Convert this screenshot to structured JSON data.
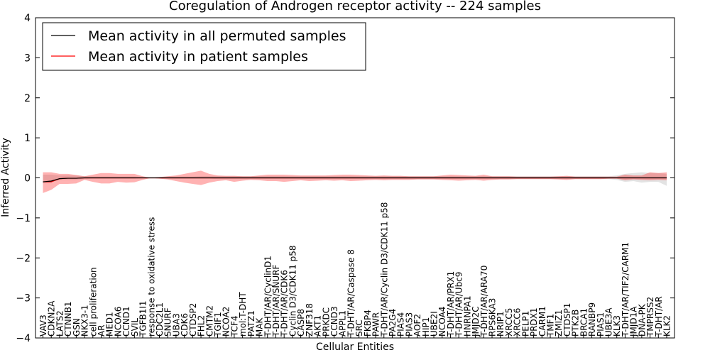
{
  "chart_data": {
    "type": "line",
    "title": "Coregulation of Androgen receptor activity -- 224 samples",
    "xlabel": "Cellular Entities",
    "ylabel": "Inferred Activity",
    "ylim": [
      -4,
      4
    ],
    "yticks": [
      "4",
      "3",
      "2",
      "1",
      "0",
      "−1",
      "−2",
      "−3",
      "−4"
    ],
    "ytick_values": [
      4,
      3,
      2,
      1,
      0,
      -1,
      -2,
      -3,
      -4
    ],
    "legend_placement": "top-left",
    "categories": [
      "VAV3",
      "CDKN2A",
      "LATS2",
      "CTNNB1",
      "GSN",
      "NKX3-1",
      "cell proliferation",
      "AR",
      "MED1",
      "NCOA6",
      "CCND1",
      "SVIL",
      "TGFB1I1",
      "response to oxidative stress",
      "CDC2L1",
      "SNURF",
      "UBA3",
      "CDK6",
      "CTDSP2",
      "FHL2",
      "CMTM2",
      "TGIF1",
      "NCOA2",
      "TCF4",
      "mol:T-DHT",
      "PATZ1",
      "MAK",
      "T-DHT/AR/CyclinD1",
      "T-DHT/AR/SNURF",
      "T-DHT/AR/CDK6",
      "Cyclin D3/CDK11 p58",
      "CASP8",
      "ZNF318",
      "AKT1",
      "PRKDC",
      "CCND3",
      "APPL1",
      "T-DHT/AR/Caspase 8",
      "SRC",
      "FKBP4",
      "PAWR",
      "T-DHT/AR/Cyclin D3/CDK11 p58",
      "PA2G4",
      "PIAS4",
      "PIAS3",
      "AOF2",
      "HIP1",
      "UBE2I",
      "NCOA4",
      "T-DHT/AR/PRX1",
      "T-DHT/AR/Ubc9",
      "HNRNPA1",
      "JMJD2C",
      "T-DHT/AR/ARA70",
      "RPS6KA3",
      "NRIP1",
      "XRCC5",
      "XRCC6",
      "PELP1",
      "PRDX1",
      "CARM1",
      "TMF1",
      "ZMIZ1",
      "CTDSP1",
      "PTK2B",
      "BRCA1",
      "RANBP9",
      "PIAS1",
      "UBE3A",
      "KLK3",
      "T-DHT/AR/TIF2/CARM1",
      "JMJD1A",
      "DNA-PK",
      "TMPRSS2",
      "T-DHT/AR",
      "KLK2"
    ],
    "series": [
      {
        "name": "Mean activity in all permuted samples",
        "color": "#000000",
        "values": [
          -0.1,
          -0.08,
          -0.02,
          -0.01,
          -0.01,
          0,
          0,
          0,
          0,
          0,
          0,
          0,
          0,
          0,
          0,
          0,
          0,
          0,
          0,
          0,
          0,
          0,
          0,
          0,
          0,
          0,
          0,
          0,
          0,
          0,
          0,
          0,
          0,
          0,
          0,
          0,
          0,
          0,
          0,
          0,
          0,
          0,
          0,
          0,
          0,
          0,
          0,
          0,
          0,
          0,
          0,
          0,
          0,
          0,
          0,
          0,
          0,
          0,
          0,
          0,
          0,
          0,
          0,
          0,
          0,
          0,
          0,
          0,
          0,
          0,
          0,
          0,
          0,
          0,
          0,
          0
        ],
        "band_lower": [
          -0.12,
          -0.1,
          -0.05,
          -0.05,
          -0.05,
          -0.03,
          -0.02,
          -0.02,
          -0.02,
          -0.02,
          -0.02,
          -0.02,
          -0.01,
          0,
          -0.01,
          -0.02,
          -0.02,
          -0.02,
          -0.02,
          -0.02,
          -0.02,
          -0.03,
          -0.03,
          -0.03,
          -0.03,
          -0.03,
          -0.03,
          -0.03,
          -0.03,
          -0.03,
          -0.03,
          -0.03,
          -0.03,
          -0.03,
          -0.03,
          -0.03,
          -0.03,
          -0.03,
          -0.03,
          -0.03,
          -0.03,
          -0.03,
          -0.03,
          -0.03,
          -0.03,
          -0.03,
          -0.03,
          -0.03,
          -0.03,
          -0.03,
          -0.03,
          -0.03,
          -0.03,
          -0.03,
          -0.03,
          -0.03,
          -0.03,
          -0.03,
          -0.03,
          -0.03,
          -0.03,
          -0.03,
          -0.03,
          -0.03,
          -0.03,
          -0.03,
          -0.03,
          -0.03,
          -0.03,
          -0.05,
          -0.1,
          -0.08,
          -0.12,
          -0.1,
          -0.1,
          -0.2
        ],
        "band_upper": [
          0.08,
          0.08,
          0.06,
          0.06,
          0.06,
          0.04,
          0.03,
          0.03,
          0.03,
          0.03,
          0.03,
          0.03,
          0.02,
          0,
          0.02,
          0.03,
          0.03,
          0.03,
          0.03,
          0.04,
          0.04,
          0.04,
          0.04,
          0.04,
          0.04,
          0.04,
          0.04,
          0.04,
          0.04,
          0.04,
          0.04,
          0.04,
          0.04,
          0.04,
          0.04,
          0.04,
          0.04,
          0.04,
          0.04,
          0.04,
          0.04,
          0.04,
          0.04,
          0.04,
          0.04,
          0.04,
          0.04,
          0.04,
          0.04,
          0.04,
          0.04,
          0.04,
          0.04,
          0.04,
          0.04,
          0.04,
          0.04,
          0.04,
          0.04,
          0.04,
          0.04,
          0.04,
          0.04,
          0.04,
          0.04,
          0.04,
          0.04,
          0.04,
          0.04,
          0.06,
          0.1,
          0.12,
          0.14,
          0.12,
          0.12,
          0.1
        ]
      },
      {
        "name": "Mean activity in patient samples",
        "color": "#ff0000",
        "values": [
          -0.1,
          -0.1,
          -0.02,
          -0.01,
          -0.01,
          0,
          0,
          0,
          0,
          0,
          0,
          0,
          0,
          0,
          0,
          0,
          0,
          0,
          0,
          0,
          0,
          0,
          0,
          0,
          0,
          0,
          0,
          0,
          0,
          0,
          0,
          0,
          0,
          0,
          0,
          0,
          0,
          0,
          0,
          0,
          0,
          0,
          0,
          0,
          0,
          0,
          0,
          0,
          0,
          0,
          0,
          0,
          0,
          0,
          0,
          0,
          0,
          0,
          0,
          0,
          0,
          0,
          0,
          0,
          0,
          0,
          0,
          0,
          0,
          0,
          0,
          0,
          0,
          0,
          0,
          0
        ],
        "band_lower": [
          -0.38,
          -0.3,
          -0.15,
          -0.15,
          -0.14,
          -0.05,
          -0.1,
          -0.14,
          -0.14,
          -0.1,
          -0.12,
          -0.11,
          -0.05,
          0,
          -0.02,
          -0.04,
          -0.08,
          -0.12,
          -0.15,
          -0.18,
          -0.12,
          -0.08,
          -0.06,
          -0.1,
          -0.07,
          -0.05,
          -0.06,
          -0.08,
          -0.08,
          -0.1,
          -0.08,
          -0.06,
          -0.08,
          -0.07,
          -0.06,
          -0.07,
          -0.06,
          -0.08,
          -0.07,
          -0.06,
          -0.05,
          -0.06,
          -0.05,
          -0.05,
          -0.05,
          -0.04,
          -0.04,
          -0.04,
          -0.05,
          -0.06,
          -0.07,
          -0.06,
          -0.05,
          -0.07,
          -0.05,
          -0.04,
          -0.04,
          -0.03,
          -0.03,
          -0.03,
          -0.03,
          -0.03,
          -0.04,
          -0.05,
          -0.03,
          -0.03,
          -0.03,
          -0.03,
          -0.02,
          -0.02,
          -0.06,
          -0.04,
          -0.05,
          -0.06,
          -0.05,
          -0.06
        ],
        "band_upper": [
          0.14,
          0.14,
          0.1,
          0.1,
          0.07,
          0.04,
          0.08,
          0.12,
          0.12,
          0.1,
          0.1,
          0.1,
          0.04,
          0,
          0.02,
          0.04,
          0.06,
          0.1,
          0.14,
          0.18,
          0.1,
          0.06,
          0.05,
          0.05,
          0.04,
          0.04,
          0.06,
          0.08,
          0.08,
          0.08,
          0.07,
          0.06,
          0.06,
          0.06,
          0.06,
          0.07,
          0.08,
          0.08,
          0.07,
          0.06,
          0.05,
          0.06,
          0.05,
          0.05,
          0.04,
          0.04,
          0.04,
          0.04,
          0.06,
          0.08,
          0.07,
          0.06,
          0.05,
          0.08,
          0.04,
          0.04,
          0.04,
          0.03,
          0.03,
          0.03,
          0.03,
          0.03,
          0.04,
          0.05,
          0.03,
          0.03,
          0.03,
          0.03,
          0.03,
          0.03,
          0.08,
          0.06,
          0.06,
          0.14,
          0.12,
          0.14
        ]
      }
    ]
  }
}
